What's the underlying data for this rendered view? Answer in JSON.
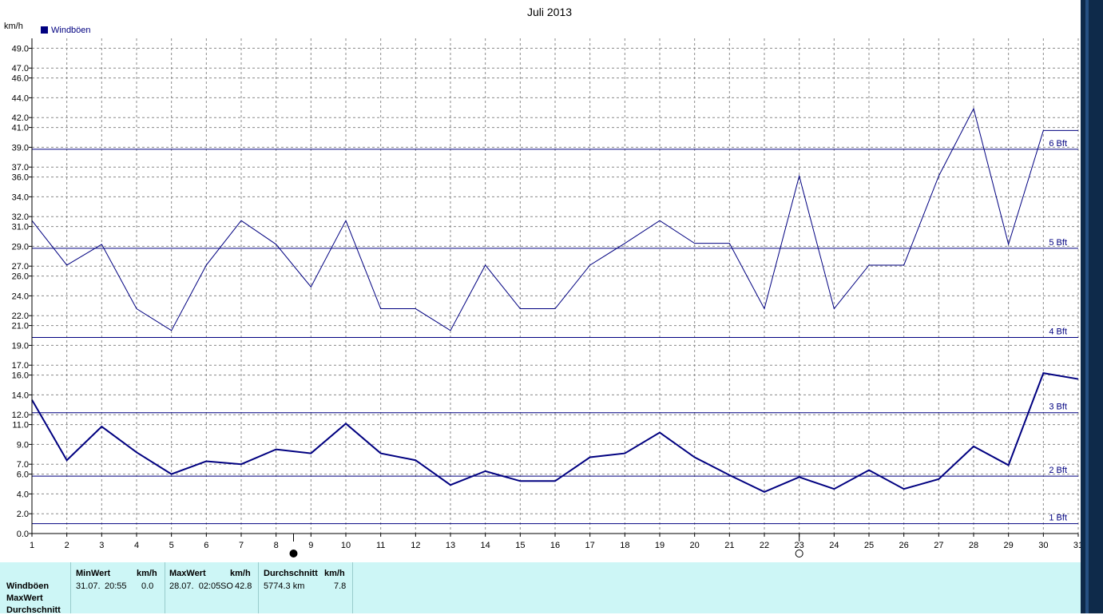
{
  "chart_data": {
    "type": "line",
    "title": "Juli 2013",
    "ylabel": "km/h",
    "legend": [
      {
        "name": "Windböen",
        "color": "#000080"
      }
    ],
    "legend_position": "top-left",
    "grid": true,
    "ylim": [
      0,
      50
    ],
    "xlim": [
      1,
      31
    ],
    "yticks": [
      0.0,
      2.0,
      4.0,
      6.0,
      7.0,
      9.0,
      11.0,
      12.0,
      14.0,
      16.0,
      17.0,
      19.0,
      21.0,
      22.0,
      24.0,
      26.0,
      27.0,
      29.0,
      31.0,
      32.0,
      34.0,
      36.0,
      37.0,
      39.0,
      41.0,
      42.0,
      44.0,
      46.0,
      47.0,
      49.0
    ],
    "x": [
      1,
      2,
      3,
      4,
      5,
      6,
      7,
      8,
      9,
      10,
      11,
      12,
      13,
      14,
      15,
      16,
      17,
      18,
      19,
      20,
      21,
      22,
      23,
      24,
      25,
      26,
      27,
      28,
      29,
      30,
      31
    ],
    "series": [
      {
        "name": "Windböen",
        "line_width": 1,
        "color": "#000080",
        "values": [
          31.6,
          27.1,
          29.2,
          22.7,
          20.5,
          27.1,
          31.6,
          29.2,
          24.9,
          31.6,
          22.7,
          22.7,
          20.5,
          27.1,
          22.7,
          22.7,
          27.1,
          29.3,
          31.6,
          29.3,
          29.3,
          22.7,
          36.1,
          22.7,
          27.1,
          27.1,
          36.1,
          42.9,
          29.2,
          40.7,
          40.7
        ]
      },
      {
        "line_width": 2,
        "color": "#000080",
        "values": [
          13.5,
          7.4,
          10.8,
          8.2,
          6.0,
          7.3,
          7.0,
          8.5,
          8.1,
          11.1,
          8.1,
          7.4,
          4.9,
          6.3,
          5.3,
          5.3,
          7.7,
          8.1,
          10.2,
          7.7,
          5.9,
          4.2,
          5.7,
          4.5,
          6.4,
          4.5,
          5.5,
          8.8,
          6.9,
          16.2,
          15.6
        ]
      }
    ],
    "reference_lines": [
      {
        "label": "1 Bft",
        "value": 1.0
      },
      {
        "label": "2 Bft",
        "value": 5.8
      },
      {
        "label": "3 Bft",
        "value": 12.2
      },
      {
        "label": "4 Bft",
        "value": 19.8
      },
      {
        "label": "5 Bft",
        "value": 28.8
      },
      {
        "label": "6 Bft",
        "value": 38.8
      }
    ],
    "moon_markers": [
      {
        "day": 8.5,
        "phase": "new"
      },
      {
        "day": 23,
        "phase": "full"
      }
    ]
  },
  "stats": {
    "row_labels": [
      "Windböen",
      "MaxWert",
      "Durchschnitt"
    ],
    "min": {
      "header": "MinWert",
      "unit": "km/h",
      "date": "31.07.",
      "time": "20:55",
      "value": "0.0"
    },
    "max": {
      "header": "MaxWert",
      "unit": "km/h",
      "datetime": "28.07.  02:05",
      "dir": "SO",
      "value": "42.8"
    },
    "avg": {
      "header": "Durchschnitt",
      "unit": "km/h",
      "distance": "5774.3 km",
      "value": "7.8"
    }
  }
}
